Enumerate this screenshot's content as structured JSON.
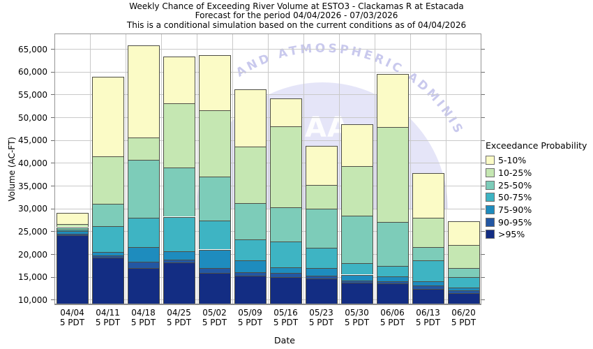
{
  "title": {
    "line1": "Weekly Chance of Exceeding River Volume at ESTO3 - Clackamas R at Estacada",
    "line2": "Forecast for the period 04/04/2026 - 07/03/2026",
    "line3": "This is a conditional simulation based on the current conditions as of 04/04/2026"
  },
  "watermark": {
    "arc_text": "AND ATMOSPHERIC ADMINIS",
    "center_letters": "AA",
    "dome_color": "#DEDEF6",
    "arc_text_color": "#C4C4EC"
  },
  "legend": {
    "title": "Exceedance Probability",
    "items": [
      {
        "label": "5-10%",
        "color": "#FBFBC6"
      },
      {
        "label": "10-25%",
        "color": "#C5E7B2"
      },
      {
        "label": "25-50%",
        "color": "#7DCCB9"
      },
      {
        "label": "50-75%",
        "color": "#3EB4C3"
      },
      {
        "label": "75-90%",
        "color": "#1E8CBE"
      },
      {
        "label": "90-95%",
        "color": "#2357A3"
      },
      {
        "label": ">95%",
        "color": "#132D83"
      }
    ]
  },
  "chart_data": {
    "type": "bar",
    "stacked": true,
    "title": "Weekly Chance of Exceeding River Volume at ESTO3 - Clackamas R at Estacada",
    "subtitle": "Forecast for the period 04/04/2026 - 07/03/2026",
    "note": "This is a conditional simulation based on the current conditions as of 04/04/2026",
    "xlabel": "Date",
    "ylabel": "Volume (AC-FT)",
    "ylim": [
      10000,
      65000
    ],
    "ytick_step": 5000,
    "grid": true,
    "legend_position": "right",
    "x_sub_label": "5 PDT",
    "bands": [
      "5-10%",
      "10-25%",
      "25-50%",
      "50-75%",
      "75-90%",
      "90-95%",
      ">95%"
    ],
    "band_colors": [
      "#FBFBC6",
      "#C5E7B2",
      "#7DCCB9",
      "#3EB4C3",
      "#1E8CBE",
      "#2357A3",
      "#132D83"
    ],
    "categories": [
      "04/04",
      "04/11",
      "04/18",
      "04/25",
      "05/02",
      "05/09",
      "05/16",
      "05/23",
      "05/30",
      "06/06",
      "06/13",
      "06/20"
    ],
    "bars": [
      {
        "date": "04/04",
        "band_tops": [
          29100,
          26600,
          25900,
          25400,
          25000,
          24500,
          24200
        ]
      },
      {
        "date": "04/11",
        "band_tops": [
          58900,
          41500,
          31000,
          26100,
          20500,
          19700,
          19300
        ]
      },
      {
        "date": "04/18",
        "band_tops": [
          65700,
          45600,
          40600,
          28000,
          21600,
          18300,
          16900
        ]
      },
      {
        "date": "04/25",
        "band_tops": [
          63300,
          53000,
          39000,
          28200,
          20600,
          18800,
          18200
        ]
      },
      {
        "date": "05/02",
        "band_tops": [
          63700,
          51600,
          37000,
          27400,
          21000,
          16900,
          15900
        ]
      },
      {
        "date": "05/09",
        "band_tops": [
          56200,
          43600,
          31200,
          23200,
          18600,
          16000,
          15300
        ]
      },
      {
        "date": "05/16",
        "band_tops": [
          54100,
          48000,
          30300,
          22800,
          17100,
          15900,
          15000
        ]
      },
      {
        "date": "05/23",
        "band_tops": [
          43700,
          35200,
          30000,
          21400,
          17000,
          15300,
          14700
        ]
      },
      {
        "date": "05/30",
        "band_tops": [
          48500,
          39300,
          28400,
          18000,
          15500,
          14200,
          13800
        ]
      },
      {
        "date": "06/06",
        "band_tops": [
          59500,
          47900,
          27000,
          17400,
          15100,
          14100,
          13600
        ]
      },
      {
        "date": "06/13",
        "band_tops": [
          37700,
          28000,
          21500,
          18600,
          14100,
          13100,
          12400
        ]
      },
      {
        "date": "06/20",
        "band_tops": [
          27200,
          22000,
          16900,
          14900,
          12700,
          12000,
          11400
        ]
      }
    ]
  }
}
